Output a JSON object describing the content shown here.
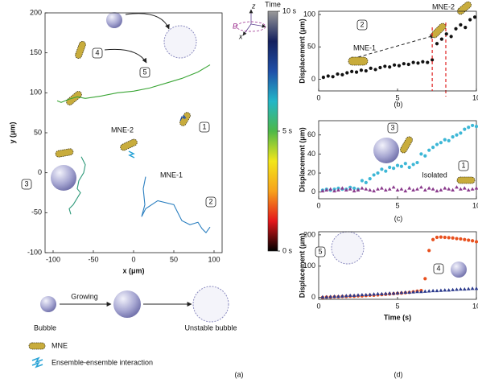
{
  "chart_data": [
    {
      "type": "line",
      "xlabel": "x (μm)",
      "ylabel": "y (μm)",
      "xlim": [
        -110,
        110
      ],
      "ylim": [
        -100,
        200
      ],
      "xticks": [
        -100,
        -50,
        0,
        50,
        100
      ],
      "yticks": [
        -100,
        -50,
        0,
        50,
        100,
        150,
        200
      ],
      "series": [
        {
          "color": "#3aa535",
          "x": [
            -95,
            -90,
            -80,
            -70,
            -60,
            -40,
            -20,
            0,
            20,
            40,
            60,
            80,
            90,
            95
          ],
          "values": [
            90,
            88,
            92,
            95,
            93,
            96,
            100,
            102,
            106,
            112,
            118,
            126,
            132,
            135
          ]
        },
        {
          "color": "#1f4fa8",
          "x": [
            58,
            60,
            63,
            62,
            65
          ],
          "values": [
            65,
            70,
            68,
            72,
            68
          ]
        },
        {
          "color": "#2f9a7a",
          "x": [
            -65,
            -60,
            -62,
            -68,
            -70,
            -66,
            -72,
            -75,
            -80,
            -78
          ],
          "values": [
            20,
            10,
            0,
            -10,
            -20,
            -25,
            -35,
            -40,
            -45,
            -52
          ]
        },
        {
          "color": "#2b7fc0",
          "x": [
            15,
            12,
            14,
            10,
            15,
            30,
            50,
            55,
            60,
            70,
            80,
            85,
            90,
            95
          ],
          "values": [
            -5,
            -20,
            -40,
            -55,
            -45,
            -35,
            -40,
            -50,
            -60,
            -65,
            -62,
            -70,
            -75,
            -68
          ]
        }
      ],
      "colorbar": {
        "title": "Time",
        "lim": [
          0,
          10
        ],
        "ticks": [
          {
            "value": 0,
            "label": "0 s"
          },
          {
            "value": 5,
            "label": "5 s"
          },
          {
            "value": 10,
            "label": "10 s"
          }
        ],
        "colors": [
          "#000000",
          "#e4161b",
          "#f7a21b",
          "#f2e61a",
          "#4db848",
          "#23b6c8",
          "#1f4fa8",
          "#14205e",
          "#9a9a9a"
        ]
      },
      "annotations": [
        "MNE-2",
        "MNE-1",
        "1",
        "2",
        "3",
        "4",
        "5"
      ]
    },
    {
      "type": "scatter",
      "ylabel": "Displacement (μm)",
      "xlim": [
        0,
        10
      ],
      "ylim": [
        -18,
        105
      ],
      "xticks": [
        0,
        5,
        10
      ],
      "yticks": [
        0,
        50,
        100
      ],
      "x": [
        0.3,
        0.6,
        0.9,
        1.2,
        1.5,
        1.8,
        2.1,
        2.4,
        2.7,
        3.0,
        3.3,
        3.6,
        3.9,
        4.2,
        4.5,
        4.8,
        5.1,
        5.4,
        5.7,
        6.0,
        6.3,
        6.6,
        6.9,
        7.2,
        7.5,
        7.8,
        8.1,
        8.4,
        8.7,
        9.0,
        9.3,
        9.6,
        9.9
      ],
      "series": [
        {
          "color": "#111111",
          "marker": "circle",
          "values": [
            3,
            5,
            4,
            8,
            7,
            10,
            12,
            11,
            14,
            13,
            17,
            15,
            18,
            20,
            19,
            22,
            21,
            24,
            23,
            26,
            25,
            27,
            26,
            30,
            55,
            62,
            70,
            66,
            78,
            84,
            80,
            92,
            96
          ]
        }
      ],
      "event_x": 7.2,
      "event_color": "#e02020",
      "annotations": [
        "2",
        "MNE-1",
        "MNE-2"
      ]
    },
    {
      "type": "scatter",
      "ylabel": "Displacement (μm)",
      "xlim": [
        0,
        10
      ],
      "ylim": [
        -7,
        75
      ],
      "xticks": [
        0,
        5,
        10
      ],
      "yticks": [
        0,
        20,
        40,
        60
      ],
      "x": [
        0.25,
        0.5,
        0.75,
        1.0,
        1.25,
        1.5,
        1.75,
        2.0,
        2.25,
        2.5,
        2.75,
        3.0,
        3.25,
        3.5,
        3.75,
        4.0,
        4.25,
        4.5,
        4.75,
        5.0,
        5.25,
        5.5,
        5.75,
        6.0,
        6.25,
        6.5,
        6.75,
        7.0,
        7.25,
        7.5,
        7.75,
        8.0,
        8.25,
        8.5,
        8.75,
        9.0,
        9.25,
        9.5,
        9.75,
        10.0
      ],
      "series": [
        {
          "color": "#3db7d6",
          "marker": "circle",
          "values": [
            2,
            3,
            2,
            3,
            4,
            3,
            3,
            5,
            4,
            3,
            12,
            10,
            14,
            18,
            20,
            24,
            22,
            26,
            25,
            28,
            27,
            30,
            26,
            29,
            31,
            40,
            38,
            44,
            47,
            50,
            52,
            55,
            54,
            58,
            60,
            62,
            66,
            68,
            70,
            69
          ]
        },
        {
          "color": "#8a3a8c",
          "marker": "triangle",
          "values": [
            1,
            2,
            3,
            1,
            2,
            4,
            2,
            3,
            1,
            2,
            4,
            3,
            2,
            1,
            3,
            4,
            2,
            3,
            5,
            2,
            3,
            1,
            4,
            2,
            3,
            5,
            2,
            4,
            3,
            1,
            2,
            4,
            3,
            2,
            5,
            3,
            4,
            2,
            3,
            4
          ]
        }
      ],
      "annotations": [
        "3",
        "1",
        "Isolated"
      ]
    },
    {
      "type": "scatter",
      "xlabel": "Time (s)",
      "ylabel": "Displacement (μm)",
      "xlim": [
        0,
        10
      ],
      "ylim": [
        -6,
        210
      ],
      "xticks": [
        0,
        5,
        10
      ],
      "yticks": [
        0,
        100,
        200
      ],
      "x": [
        0.25,
        0.5,
        0.75,
        1.0,
        1.25,
        1.5,
        1.75,
        2.0,
        2.25,
        2.5,
        2.75,
        3.0,
        3.25,
        3.5,
        3.75,
        4.0,
        4.25,
        4.5,
        4.75,
        5.0,
        5.25,
        5.5,
        5.75,
        6.0,
        6.25,
        6.5,
        6.75,
        7.0,
        7.25,
        7.5,
        7.75,
        8.0,
        8.25,
        8.5,
        8.75,
        9.0,
        9.25,
        9.5,
        9.75,
        10.0
      ],
      "series": [
        {
          "color": "#e8501e",
          "marker": "circle",
          "values": [
            0,
            1,
            1,
            2,
            2,
            3,
            3,
            4,
            4,
            5,
            5,
            6,
            7,
            7,
            8,
            9,
            10,
            11,
            12,
            13,
            14,
            15,
            16,
            18,
            20,
            22,
            60,
            150,
            185,
            192,
            193,
            192,
            191,
            190,
            188,
            187,
            185,
            183,
            181,
            178
          ]
        },
        {
          "color": "#2b3a8c",
          "marker": "triangle",
          "values": [
            1,
            1,
            2,
            3,
            3,
            4,
            5,
            6,
            6,
            7,
            8,
            8,
            9,
            10,
            11,
            11,
            12,
            13,
            13,
            14,
            15,
            16,
            16,
            17,
            18,
            18,
            19,
            20,
            21,
            21,
            22,
            23,
            23,
            24,
            25,
            26,
            26,
            27,
            28,
            28
          ]
        }
      ],
      "annotations": [
        "5",
        "4"
      ]
    }
  ],
  "figure": {
    "panel_labels": [
      "(a)",
      "(b)",
      "(c)",
      "(d)"
    ],
    "schematic": [
      "Bubble",
      "Growing",
      "Unstable bubble"
    ],
    "legend": [
      "MNE",
      "Ensemble-ensemble interaction"
    ],
    "axes_icon": [
      "z",
      "y",
      "x",
      "B"
    ]
  }
}
